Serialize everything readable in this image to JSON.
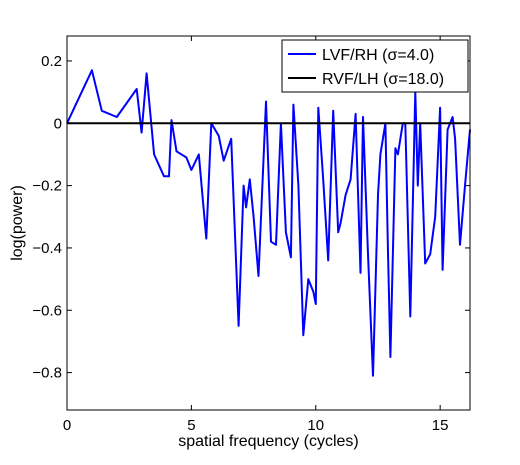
{
  "chart_data": {
    "type": "line",
    "title": "",
    "xlabel": "spatial frequency (cycles)",
    "ylabel": "log(power)",
    "xlim": [
      0,
      16.2
    ],
    "ylim": [
      -0.92,
      0.28
    ],
    "xticks": [
      0,
      5,
      10,
      15
    ],
    "xtick_labels": [
      "0",
      "5",
      "10",
      "15"
    ],
    "yticks": [
      0.2,
      0,
      -0.2,
      -0.4,
      -0.6,
      -0.8
    ],
    "ytick_labels": [
      "0.2",
      "0",
      "−0.2",
      "−0.4",
      "−0.6",
      "−0.8"
    ],
    "grid": false,
    "legend_position": "top-right",
    "series": [
      {
        "name": "LVF/RH (σ=4.0)",
        "color": "#0000ff",
        "x": [
          0,
          1,
          1.4,
          2,
          2.8,
          3,
          3.2,
          3.5,
          3.9,
          4.1,
          4.2,
          4.4,
          4.8,
          5,
          5.3,
          5.6,
          5.8,
          6.1,
          6.3,
          6.6,
          6.9,
          7.1,
          7.2,
          7.35,
          7.5,
          7.7,
          8,
          8.2,
          8.4,
          8.6,
          8.8,
          9.0,
          9.1,
          9.3,
          9.5,
          9.7,
          9.9,
          10.0,
          10.1,
          10.3,
          10.5,
          10.7,
          10.9,
          11.0,
          11.2,
          11.4,
          11.6,
          11.8,
          11.9,
          12.1,
          12.3,
          12.5,
          12.6,
          12.8,
          12.9,
          13.0,
          13.2,
          13.3,
          13.5,
          13.6,
          13.8,
          14.0,
          14.1,
          14.2,
          14.4,
          14.6,
          14.8,
          15.0,
          15.1,
          15.3,
          15.5,
          15.6,
          15.8,
          16.0,
          16.2
        ],
        "values": [
          0.0,
          0.17,
          0.04,
          0.02,
          0.11,
          -0.03,
          0.16,
          -0.1,
          -0.17,
          -0.17,
          0.01,
          -0.09,
          -0.11,
          -0.15,
          -0.1,
          -0.37,
          0.0,
          -0.04,
          -0.12,
          -0.05,
          -0.65,
          -0.2,
          -0.27,
          -0.18,
          -0.3,
          -0.49,
          0.07,
          -0.38,
          -0.39,
          0.0,
          -0.35,
          -0.43,
          0.06,
          -0.2,
          -0.68,
          -0.5,
          -0.54,
          -0.58,
          0.05,
          -0.18,
          -0.44,
          0.04,
          -0.35,
          -0.32,
          -0.23,
          -0.18,
          0.03,
          -0.48,
          0.02,
          -0.42,
          -0.81,
          -0.23,
          -0.1,
          0.0,
          -0.4,
          -0.75,
          -0.08,
          -0.1,
          0.0,
          0.0,
          -0.62,
          0.1,
          -0.2,
          0.0,
          -0.45,
          -0.42,
          -0.3,
          0.05,
          -0.47,
          -0.02,
          0.02,
          -0.05,
          -0.39,
          -0.2,
          -0.02
        ]
      },
      {
        "name": "RVF/LH (σ=18.0)",
        "color": "#000000",
        "x": [
          0,
          16.2
        ],
        "values": [
          0,
          0
        ]
      }
    ]
  }
}
